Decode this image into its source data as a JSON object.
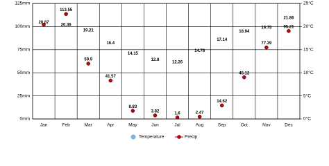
{
  "chart_data": {
    "type": "climate",
    "categories": [
      "Jan",
      "Feb",
      "Mar",
      "Apr",
      "May",
      "Jun",
      "Jul",
      "Aug",
      "Sep",
      "Oct",
      "Nov",
      "Dec"
    ],
    "series": [
      {
        "name": "Temperature",
        "color": "#7fb3e0",
        "axis": "y2",
        "values": [
          20.87,
          20.36,
          19.21,
          16.4,
          14.15,
          12.8,
          12.26,
          14.76,
          17.14,
          18.94,
          19.75,
          21.86
        ]
      },
      {
        "name": "Precip",
        "color": "#cc0000",
        "values": [
          102,
          113.55,
          59.9,
          41.57,
          8.83,
          3.82,
          1.6,
          2.47,
          14.62,
          45.12,
          77.39,
          95.21
        ],
        "value_labels": [
          null,
          "113.55",
          "59.9",
          "41.57",
          "8.83",
          "3.82",
          "1.6",
          "2.47",
          "14.62",
          "45.12",
          "77.39",
          "95.21"
        ]
      }
    ],
    "ylim": [
      0,
      125
    ],
    "yticks": [
      {
        "value": 0,
        "label": "0mm"
      },
      {
        "value": 25,
        "label": "25mm"
      },
      {
        "value": 50,
        "label": "50mm"
      },
      {
        "value": 75,
        "label": "75mm"
      },
      {
        "value": 100,
        "label": "100mm"
      },
      {
        "value": 125,
        "label": "125mm"
      }
    ],
    "y2lim": [
      0,
      25
    ],
    "y2ticks": [
      {
        "value": 0,
        "label": "0°C"
      },
      {
        "value": 5,
        "label": "5°C"
      },
      {
        "value": 10,
        "label": "10°C"
      },
      {
        "value": 15,
        "label": "15°C"
      },
      {
        "value": 20,
        "label": "20°C"
      },
      {
        "value": 25,
        "label": "25°C"
      }
    ],
    "grid": true
  }
}
